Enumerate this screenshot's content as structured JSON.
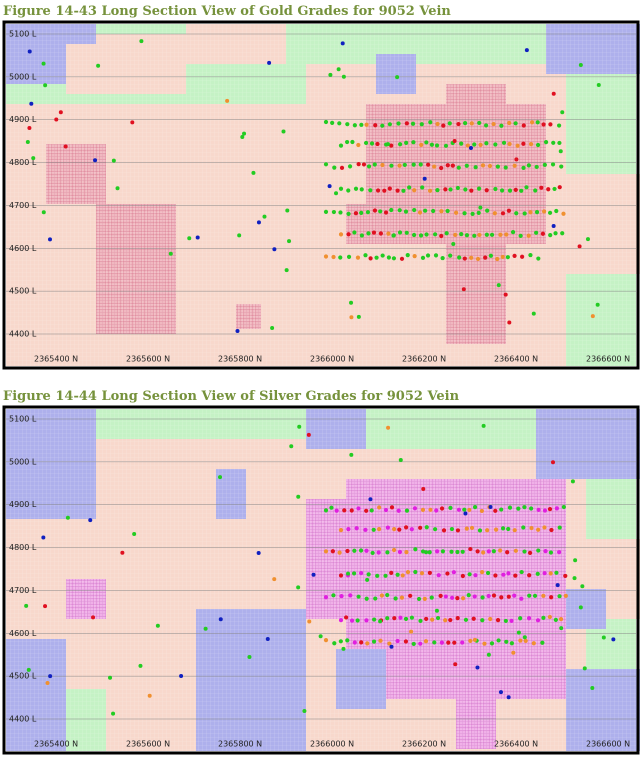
{
  "figures": [
    {
      "caption": "Figure 14-43 Long Section View of Gold Grades for 9052 Vein",
      "y_labels": [
        "5100 L",
        "5000 L",
        "4900 L",
        "4800 L",
        "4700 L",
        "4600 L",
        "4500 L",
        "4400 L"
      ],
      "x_labels": [
        "2365400 N",
        "2365600 N",
        "2365800 N",
        "2366000 N",
        "2366200 N",
        "2366400 N",
        "2366600 N"
      ]
    },
    {
      "caption": "Figure 14-44 Long Section View of Silver Grades for 9052 Vein",
      "y_labels": [
        "5100 L",
        "5000 L",
        "4900 L",
        "4800 L",
        "4700 L",
        "4600 L",
        "4500 L",
        "4400 L"
      ],
      "x_labels": [
        "2365400 N",
        "2365600 N",
        "2365800 N",
        "2366000 N",
        "2366200 N",
        "2366400 N",
        "2366600 N"
      ]
    }
  ]
}
